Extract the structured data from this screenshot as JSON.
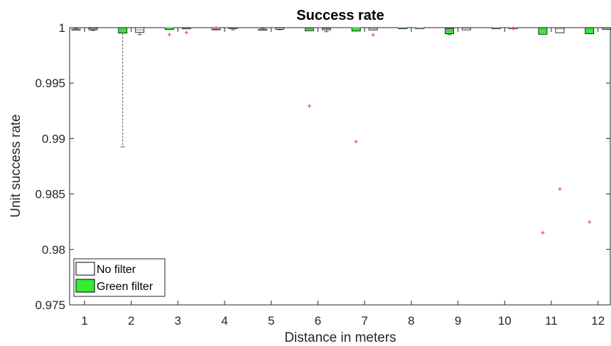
{
  "chart_data": {
    "type": "boxplot",
    "title": "Success rate",
    "xlabel": "Distance in meters",
    "ylabel": "Unit success rate",
    "categories": [
      "1",
      "2",
      "3",
      "4",
      "5",
      "6",
      "7",
      "8",
      "9",
      "10",
      "11",
      "12"
    ],
    "ylim": [
      0.975,
      1.0
    ],
    "yticks": [
      0.975,
      0.98,
      0.985,
      0.99,
      0.995,
      1
    ],
    "ytick_labels": [
      "0.975",
      "0.98",
      "0.985",
      "0.99",
      "0.995",
      "1"
    ],
    "grid": false,
    "legend_position": "bottom-left",
    "series": [
      {
        "name": "No filter",
        "color": "#ffffff",
        "edge_color": "#000000",
        "boxes": [
          {
            "x": 1,
            "whisker_low": 0.99975,
            "q1": 0.9998,
            "median": 0.99985,
            "q3": 0.99995,
            "whisker_high": 1.0,
            "outliers": []
          },
          {
            "x": 2,
            "whisker_low": 0.99937,
            "q1": 0.99957,
            "median": 0.9998,
            "q3": 1.0,
            "whisker_high": 1.0,
            "outliers": []
          },
          {
            "x": 3,
            "whisker_low": 0.99989,
            "q1": 0.99989,
            "median": 0.99995,
            "q3": 1.0,
            "whisker_high": 1.0,
            "outliers": [
              0.99956
            ]
          },
          {
            "x": 4,
            "whisker_low": 0.9998,
            "q1": 0.9999,
            "median": 0.99995,
            "q3": 1.0,
            "whisker_high": 1.0,
            "outliers": []
          },
          {
            "x": 5,
            "whisker_low": 0.99981,
            "q1": 0.99985,
            "median": 0.99995,
            "q3": 1.0,
            "whisker_high": 1.0,
            "outliers": []
          },
          {
            "x": 6,
            "whisker_low": 0.99963,
            "q1": 0.9998,
            "median": 0.9999,
            "q3": 0.99993,
            "whisker_high": 0.99993,
            "outliers": []
          },
          {
            "x": 7,
            "whisker_low": 0.99979,
            "q1": 0.99979,
            "median": 0.9999,
            "q3": 1.0,
            "whisker_high": 1.0,
            "outliers": [
              0.99935
            ]
          },
          {
            "x": 8,
            "whisker_low": 0.99994,
            "q1": 0.99994,
            "median": 1.0,
            "q3": 1.0,
            "whisker_high": 1.0,
            "outliers": []
          },
          {
            "x": 9,
            "whisker_low": 0.9998,
            "q1": 0.9998,
            "median": 0.99995,
            "q3": 1.0,
            "whisker_high": 1.0,
            "outliers": []
          },
          {
            "x": 10,
            "whisker_low": 0.99998,
            "q1": 0.99998,
            "median": 0.99999,
            "q3": 1.0,
            "whisker_high": 1.0,
            "outliers": [
              0.99993
            ]
          },
          {
            "x": 11,
            "whisker_low": 0.99954,
            "q1": 0.99954,
            "median": 0.9999,
            "q3": 1.0,
            "whisker_high": 1.0,
            "outliers": [
              0.98545
            ]
          },
          {
            "x": 12,
            "whisker_low": 0.99985,
            "q1": 0.99985,
            "median": 0.99992,
            "q3": 1.0,
            "whisker_high": 1.0,
            "outliers": []
          }
        ]
      },
      {
        "name": "Green filter",
        "color": "#33ee33",
        "edge_color": "#000000",
        "boxes": [
          {
            "x": 1,
            "whisker_low": 0.9998,
            "q1": 0.9998,
            "median": 0.99988,
            "q3": 0.99988,
            "whisker_high": 0.99993,
            "outliers": []
          },
          {
            "x": 2,
            "whisker_low": 0.98925,
            "q1": 0.99951,
            "median": 0.9998,
            "q3": 1.0,
            "whisker_high": 1.0,
            "outliers": []
          },
          {
            "x": 3,
            "whisker_low": 0.99984,
            "q1": 0.99984,
            "median": 1.0,
            "q3": 1.0,
            "whisker_high": 1.0,
            "outliers": [
              0.99937
            ]
          },
          {
            "x": 4,
            "whisker_low": 0.9998,
            "q1": 0.99984,
            "median": 0.9999,
            "q3": 0.9999,
            "whisker_high": 0.9999,
            "outliers": [
              1.0
            ]
          },
          {
            "x": 5,
            "whisker_low": 0.99981,
            "q1": 0.99984,
            "median": 0.99987,
            "q3": 0.99987,
            "whisker_high": 0.99993,
            "outliers": []
          },
          {
            "x": 6,
            "whisker_low": 0.99972,
            "q1": 0.99972,
            "median": 0.99993,
            "q3": 0.99993,
            "whisker_high": 0.99993,
            "outliers": [
              0.99293
            ]
          },
          {
            "x": 7,
            "whisker_low": 0.99969,
            "q1": 0.99969,
            "median": 1.0,
            "q3": 1.0,
            "whisker_high": 1.0,
            "outliers": [
              0.98972
            ]
          },
          {
            "x": 8,
            "whisker_low": 0.99993,
            "q1": 0.99993,
            "median": 1.0,
            "q3": 1.0,
            "whisker_high": 1.0,
            "outliers": []
          },
          {
            "x": 9,
            "whisker_low": 0.99936,
            "q1": 0.99945,
            "median": 0.99974,
            "q3": 0.99993,
            "whisker_high": 0.99993,
            "outliers": []
          },
          {
            "x": 10,
            "whisker_low": 0.99992,
            "q1": 0.99992,
            "median": 1.0,
            "q3": 1.0,
            "whisker_high": 1.0,
            "outliers": []
          },
          {
            "x": 11,
            "whisker_low": 0.9994,
            "q1": 0.9994,
            "median": 0.99987,
            "q3": 1.0,
            "whisker_high": 1.0,
            "outliers": [
              0.98151
            ]
          },
          {
            "x": 12,
            "whisker_low": 0.99945,
            "q1": 0.99945,
            "median": 0.99986,
            "q3": 1.0,
            "whisker_high": 1.0,
            "outliers": [
              0.98248
            ]
          }
        ]
      }
    ],
    "legend": [
      {
        "label": "No filter",
        "color": "#ffffff"
      },
      {
        "label": "Green filter",
        "color": "#33ee33"
      }
    ]
  }
}
